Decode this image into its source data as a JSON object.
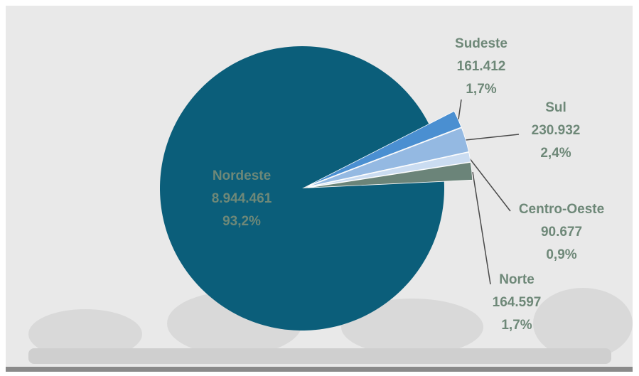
{
  "chart_data": {
    "type": "pie",
    "categories": [
      "Nordeste",
      "Sudeste",
      "Sul",
      "Centro-Oeste",
      "Norte"
    ],
    "values": [
      8944461,
      161412,
      230932,
      90677,
      164597
    ],
    "value_labels": [
      "8.944.461",
      "161.412",
      "230.932",
      "90.677",
      "164.597"
    ],
    "percentages": [
      93.2,
      1.7,
      2.4,
      0.9,
      1.7
    ],
    "percent_labels": [
      "93,2%",
      "1,7%",
      "2,4%",
      "0,9%",
      "1,7%"
    ],
    "colors": [
      "#0b5e7a",
      "#4a8fd1",
      "#94b9e2",
      "#cadcf1",
      "#6b8479"
    ]
  }
}
